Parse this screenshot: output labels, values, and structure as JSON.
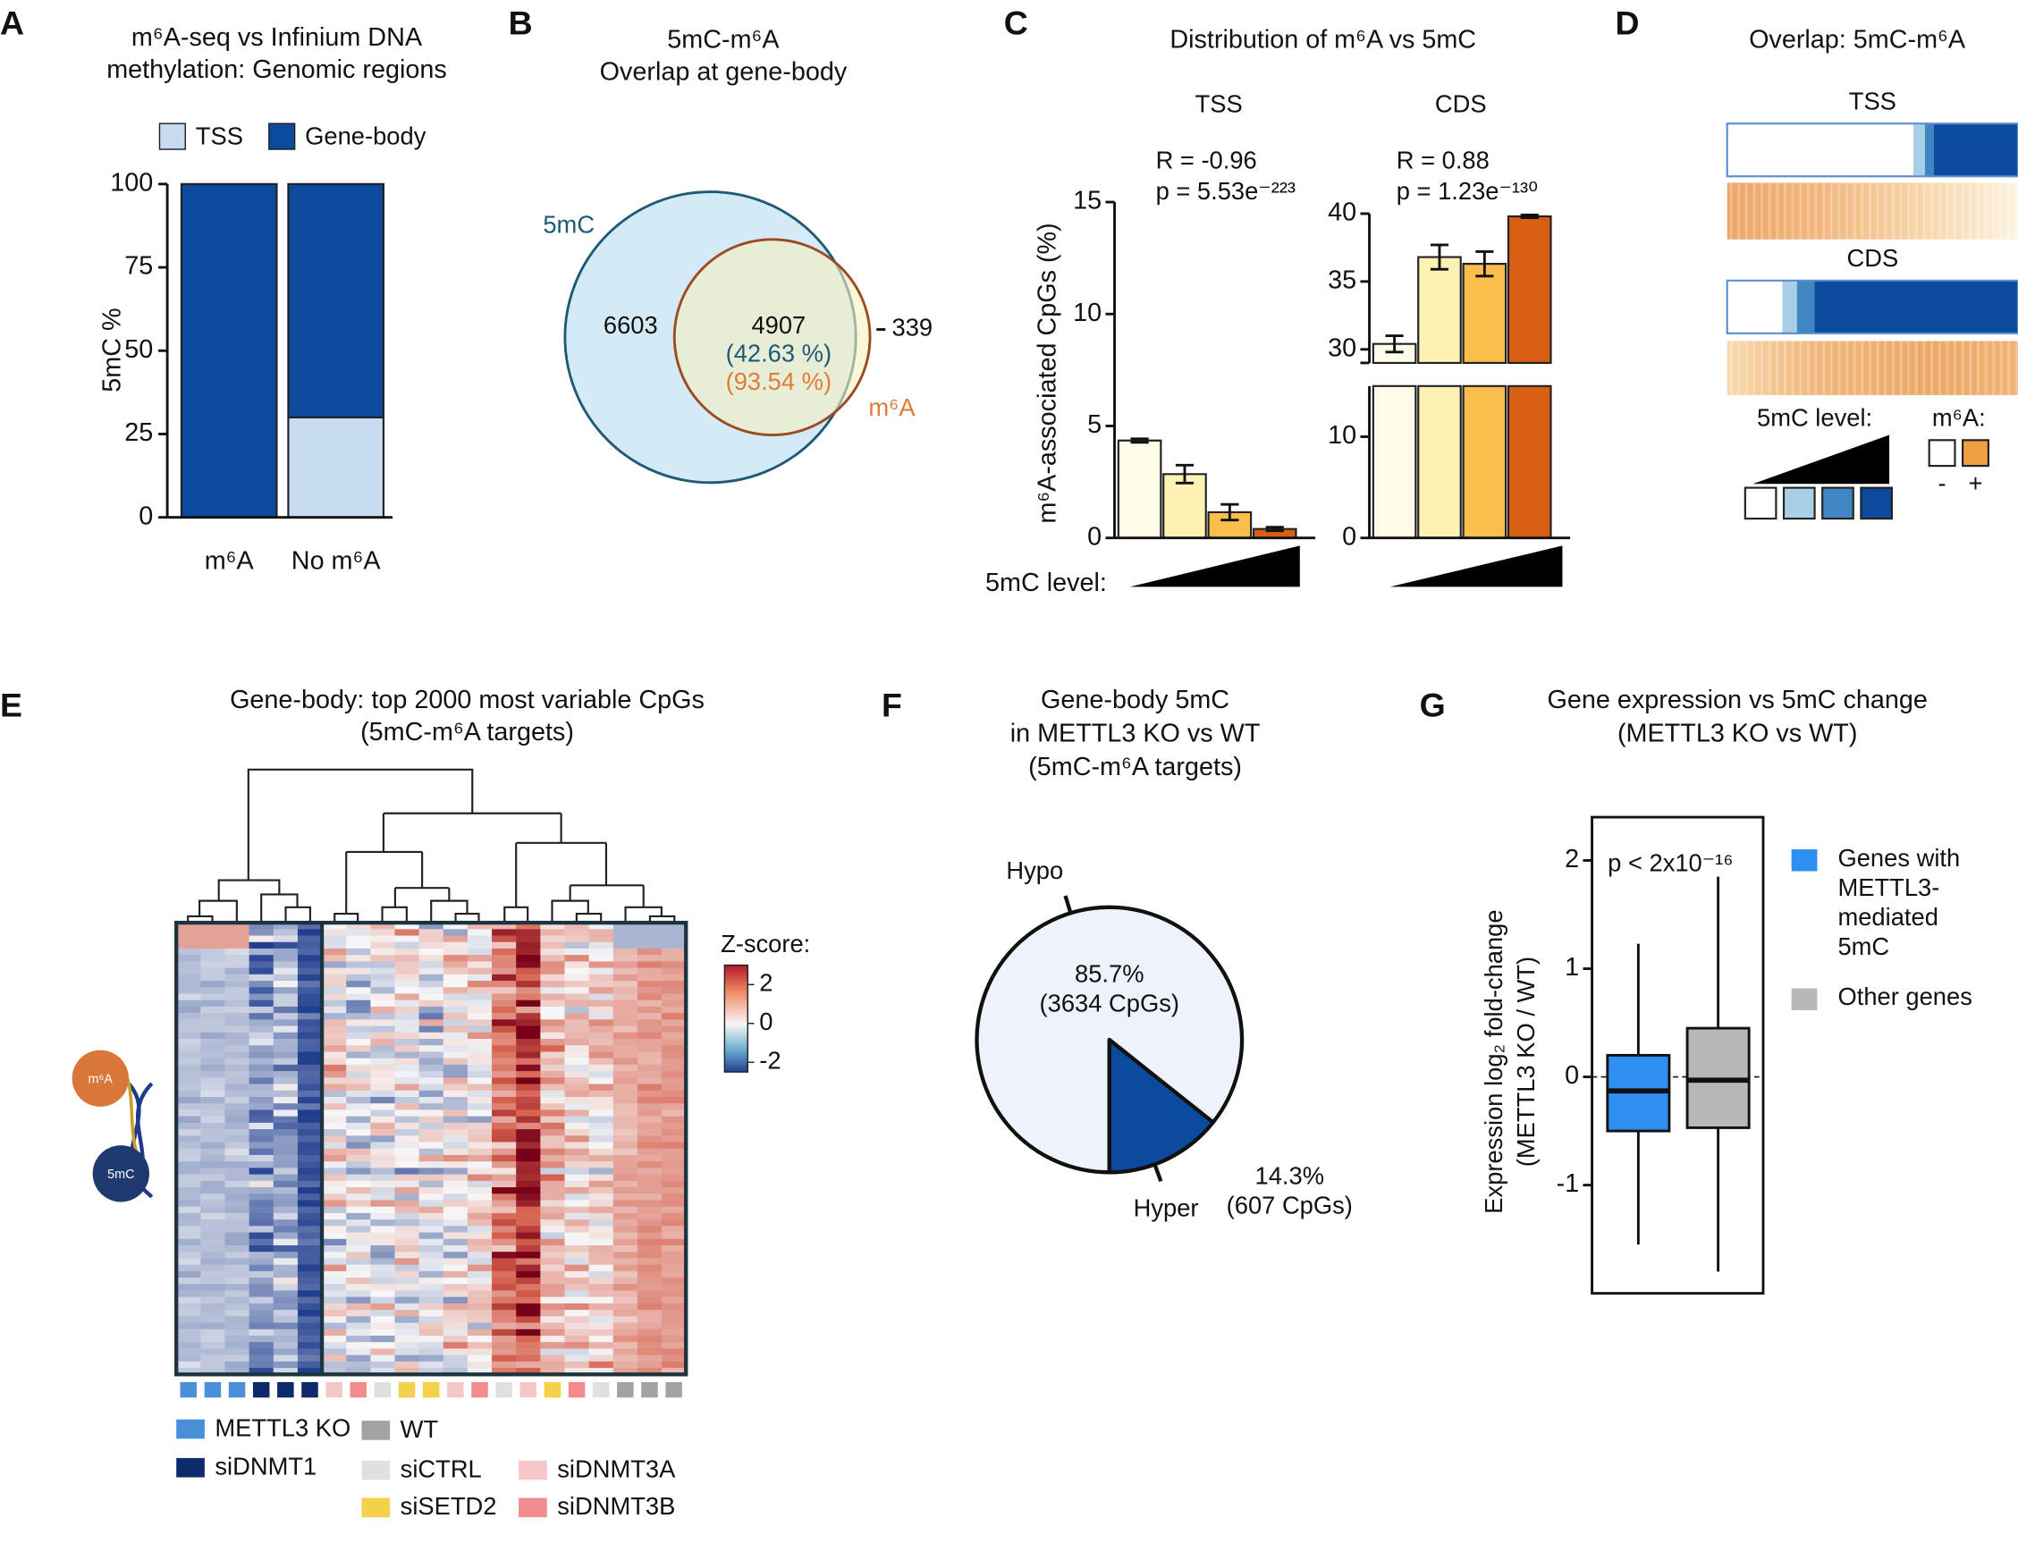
{
  "chart_data": [
    {
      "type": "stacked_bar",
      "label": "A",
      "title": [
        "m⁶A-seq vs Infinium DNA",
        "methylation: Genomic regions"
      ],
      "categories": [
        "m⁶A",
        "No m⁶A"
      ],
      "ylabel": "5mC %",
      "ylim": [
        0,
        100
      ],
      "yticks": [
        0,
        25,
        50,
        75,
        100
      ],
      "series": [
        {
          "name": "TSS",
          "color": "#c7dcf0",
          "values": [
            0,
            30
          ]
        },
        {
          "name": "Gene-body",
          "color": "#0b4a9c",
          "values": [
            100,
            70
          ]
        }
      ]
    },
    {
      "type": "venn",
      "label": "B",
      "title": [
        "5mC-m⁶A",
        "Overlap at gene-body"
      ],
      "sets": [
        {
          "name": "5mC",
          "color": "#1f5a74",
          "fill": "#d3eaf7"
        },
        {
          "name": "m⁶A",
          "color": "#e07b39",
          "stroke": "#9c4a22",
          "fill": "#f6f0c0"
        }
      ],
      "only_a": 6603,
      "both": 4907,
      "both_pct_labels": [
        "(42.63 %)",
        "(93.54 %)"
      ],
      "only_b": 339
    },
    {
      "type": "bar_error",
      "label": "C",
      "title": "Distribution of m⁶A vs 5mC",
      "ylabel": "m⁶A-associated CpGs (%)",
      "xlabel": "5mC level:",
      "colors": [
        "#fefbe8",
        "#fdf1b3",
        "#fbbd4c",
        "#d95f14"
      ],
      "panels": [
        {
          "name": "TSS",
          "annotation": [
            "R = -0.96",
            "p = 5.53e⁻²²³"
          ],
          "values": [
            4.35,
            2.85,
            1.15,
            0.4
          ],
          "errors": [
            0.08,
            0.4,
            0.35,
            0.08
          ],
          "ylim": [
            0,
            15
          ],
          "yticks": [
            0,
            5,
            10,
            15
          ]
        },
        {
          "name": "CDS",
          "annotation": [
            "R = 0.88",
            "p = 1.23e⁻¹³⁰"
          ],
          "values": [
            30.4,
            36.8,
            36.3,
            39.8
          ],
          "errors": [
            0.6,
            0.9,
            0.9,
            0.1
          ],
          "ylim": [
            0,
            15
          ],
          "yticks": [
            0,
            10
          ],
          "ylim_upper": [
            29,
            40
          ],
          "yticks_upper": [
            30,
            35,
            40
          ]
        }
      ]
    },
    {
      "type": "stacked_strip",
      "label": "D",
      "title": "Overlap: 5mC-m⁶A",
      "colors": [
        "#ffffff",
        "#a9cfe6",
        "#3f86c2",
        "#0b4a9c"
      ],
      "rows": [
        {
          "name": "TSS",
          "values": [
            64,
            4,
            3,
            29
          ]
        },
        {
          "name": "CDS",
          "values": [
            19,
            5,
            6,
            70
          ]
        }
      ],
      "legend_title": "5mC level:",
      "m6a_title": "m⁶A:",
      "m6a_levels": [
        "-",
        "+"
      ],
      "m6a_colors": [
        "#ffffff",
        "#f0a040"
      ]
    },
    {
      "type": "heatmap",
      "label": "E",
      "title": [
        "Gene-body: top 2000 most variable CpGs",
        "(5mC-m⁶A targets)"
      ],
      "colorbar_title": "Z-score:",
      "zlim": [
        -2.5,
        3
      ],
      "zticks": [
        2,
        0,
        -2
      ],
      "groups": [
        {
          "name": "METTL3 KO",
          "color": "#4a90d9"
        },
        {
          "name": "siDNMT1",
          "color": "#0d2a6b"
        },
        {
          "name": "WT",
          "color": "#a3a3a3"
        },
        {
          "name": "siCTRL",
          "color": "#e0e0e0"
        },
        {
          "name": "siSETD2",
          "color": "#f5d04a"
        },
        {
          "name": "siDNMT3A",
          "color": "#f7c6c9"
        },
        {
          "name": "siDNMT3B",
          "color": "#f28c8c"
        }
      ],
      "sample_groups": [
        0,
        0,
        0,
        1,
        1,
        1,
        5,
        6,
        3,
        4,
        4,
        5,
        6,
        3,
        5,
        4,
        6,
        3,
        2,
        2,
        2
      ],
      "icon_labels": [
        "m⁶A",
        "5mC"
      ]
    },
    {
      "type": "pie",
      "label": "F",
      "title": [
        "Gene-body 5mC",
        "in METTL3 KO vs WT",
        "(5mC-m⁶A targets)"
      ],
      "categories": [
        "Hypo",
        "Hyper"
      ],
      "values": [
        85.7,
        14.3
      ],
      "value_labels": [
        "85.7%",
        "14.3%"
      ],
      "count_labels": [
        "(3634 CpGs)",
        "(607 CpGs)"
      ],
      "colors": [
        "#eef3fb",
        "#0b4a9c"
      ]
    },
    {
      "type": "box",
      "label": "G",
      "title": [
        "Gene expression vs 5mC change",
        "(METTL3 KO vs WT)"
      ],
      "ylabel": [
        "Expression log₂ fold-change",
        "(METTL3 KO / WT)"
      ],
      "annotation": "p < 2x10⁻¹⁶",
      "ylim": [
        -2,
        2.4
      ],
      "yticks": [
        -1,
        0,
        1,
        2
      ],
      "reference_line": 0,
      "series": [
        {
          "name": [
            "Genes with",
            "METTL3-",
            "mediated",
            "5mC"
          ],
          "color": "#2f8fef",
          "min": -1.55,
          "q1": -0.5,
          "median": -0.13,
          "q3": 0.2,
          "max": 1.23
        },
        {
          "name": [
            "Other genes"
          ],
          "color": "#b8b8b8",
          "min": -1.8,
          "q1": -0.47,
          "median": -0.03,
          "q3": 0.45,
          "max": 1.85
        }
      ]
    }
  ]
}
